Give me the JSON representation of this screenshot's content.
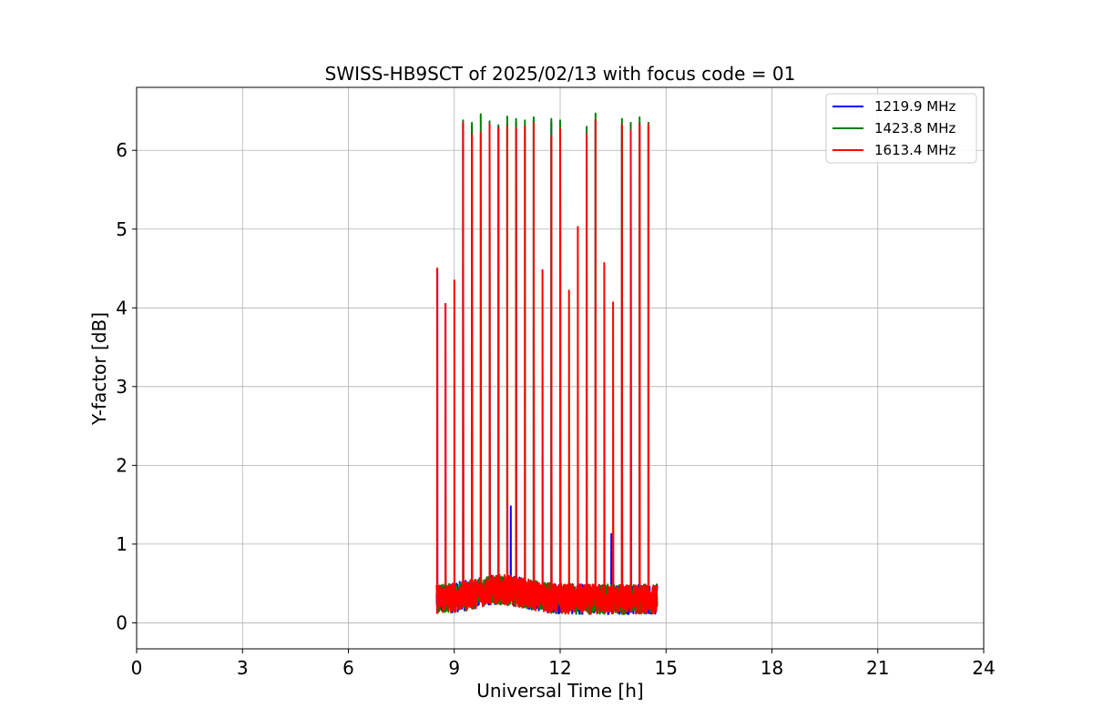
{
  "chart_data": {
    "type": "line",
    "title": "SWISS-HB9SCT of 2025/02/13 with focus code = 01",
    "xlabel": "Universal Time [h]",
    "ylabel": "Y-factor [dB]",
    "xlim": [
      0,
      24
    ],
    "ylim": [
      -0.33,
      6.8
    ],
    "xticks": [
      0,
      3,
      6,
      9,
      12,
      15,
      18,
      21,
      24
    ],
    "yticks": [
      0,
      1,
      2,
      3,
      4,
      5,
      6
    ],
    "grid": true,
    "legend_position": "top-right",
    "data_time_range": [
      8.5,
      14.75
    ],
    "series": [
      {
        "name": "1219.9 MHz",
        "color": "#0000ff",
        "baseline": 0.3,
        "peaks": [
          {
            "x": 8.52,
            "y": 4.5
          },
          {
            "x": 8.75,
            "y": 4.05
          },
          {
            "x": 9.25,
            "y": 6.35
          },
          {
            "x": 9.5,
            "y": 6.3
          },
          {
            "x": 10.0,
            "y": 6.35
          },
          {
            "x": 10.25,
            "y": 6.3
          },
          {
            "x": 10.5,
            "y": 6.35
          },
          {
            "x": 10.6,
            "y": 1.48
          },
          {
            "x": 10.75,
            "y": 6.35
          },
          {
            "x": 11.25,
            "y": 6.38
          },
          {
            "x": 11.75,
            "y": 6.35
          },
          {
            "x": 12.0,
            "y": 6.35
          },
          {
            "x": 13.0,
            "y": 6.38
          },
          {
            "x": 13.45,
            "y": 1.13
          },
          {
            "x": 13.75,
            "y": 6.3
          },
          {
            "x": 14.0,
            "y": 6.3
          },
          {
            "x": 14.25,
            "y": 6.35
          },
          {
            "x": 14.5,
            "y": 6.3
          }
        ]
      },
      {
        "name": "1423.8 MHz",
        "color": "#008000",
        "baseline": 0.3,
        "peaks": [
          {
            "x": 9.25,
            "y": 6.38
          },
          {
            "x": 9.5,
            "y": 6.35
          },
          {
            "x": 9.75,
            "y": 6.46
          },
          {
            "x": 10.0,
            "y": 6.37
          },
          {
            "x": 10.25,
            "y": 6.32
          },
          {
            "x": 10.5,
            "y": 6.43
          },
          {
            "x": 10.75,
            "y": 6.4
          },
          {
            "x": 11.0,
            "y": 6.38
          },
          {
            "x": 11.25,
            "y": 6.42
          },
          {
            "x": 11.75,
            "y": 6.4
          },
          {
            "x": 12.0,
            "y": 6.38
          },
          {
            "x": 12.75,
            "y": 6.3
          },
          {
            "x": 13.0,
            "y": 6.47
          },
          {
            "x": 13.75,
            "y": 6.4
          },
          {
            "x": 14.0,
            "y": 6.35
          },
          {
            "x": 14.25,
            "y": 6.42
          },
          {
            "x": 14.5,
            "y": 6.35
          }
        ]
      },
      {
        "name": "1613.4 MHz",
        "color": "#ff0000",
        "baseline": 0.3,
        "peaks": [
          {
            "x": 8.52,
            "y": 4.5
          },
          {
            "x": 8.75,
            "y": 4.05
          },
          {
            "x": 9.0,
            "y": 4.35
          },
          {
            "x": 9.25,
            "y": 6.35
          },
          {
            "x": 9.5,
            "y": 6.2
          },
          {
            "x": 9.75,
            "y": 6.22
          },
          {
            "x": 10.0,
            "y": 6.33
          },
          {
            "x": 10.25,
            "y": 6.28
          },
          {
            "x": 10.5,
            "y": 6.3
          },
          {
            "x": 10.75,
            "y": 6.28
          },
          {
            "x": 11.0,
            "y": 6.3
          },
          {
            "x": 11.25,
            "y": 6.35
          },
          {
            "x": 11.5,
            "y": 4.48
          },
          {
            "x": 11.75,
            "y": 6.18
          },
          {
            "x": 12.0,
            "y": 6.27
          },
          {
            "x": 12.25,
            "y": 4.22
          },
          {
            "x": 12.5,
            "y": 5.03
          },
          {
            "x": 12.75,
            "y": 6.2
          },
          {
            "x": 13.0,
            "y": 6.38
          },
          {
            "x": 13.25,
            "y": 4.57
          },
          {
            "x": 13.5,
            "y": 4.07
          },
          {
            "x": 13.75,
            "y": 6.32
          },
          {
            "x": 14.0,
            "y": 6.25
          },
          {
            "x": 14.25,
            "y": 6.33
          },
          {
            "x": 14.5,
            "y": 6.33
          }
        ]
      }
    ]
  }
}
